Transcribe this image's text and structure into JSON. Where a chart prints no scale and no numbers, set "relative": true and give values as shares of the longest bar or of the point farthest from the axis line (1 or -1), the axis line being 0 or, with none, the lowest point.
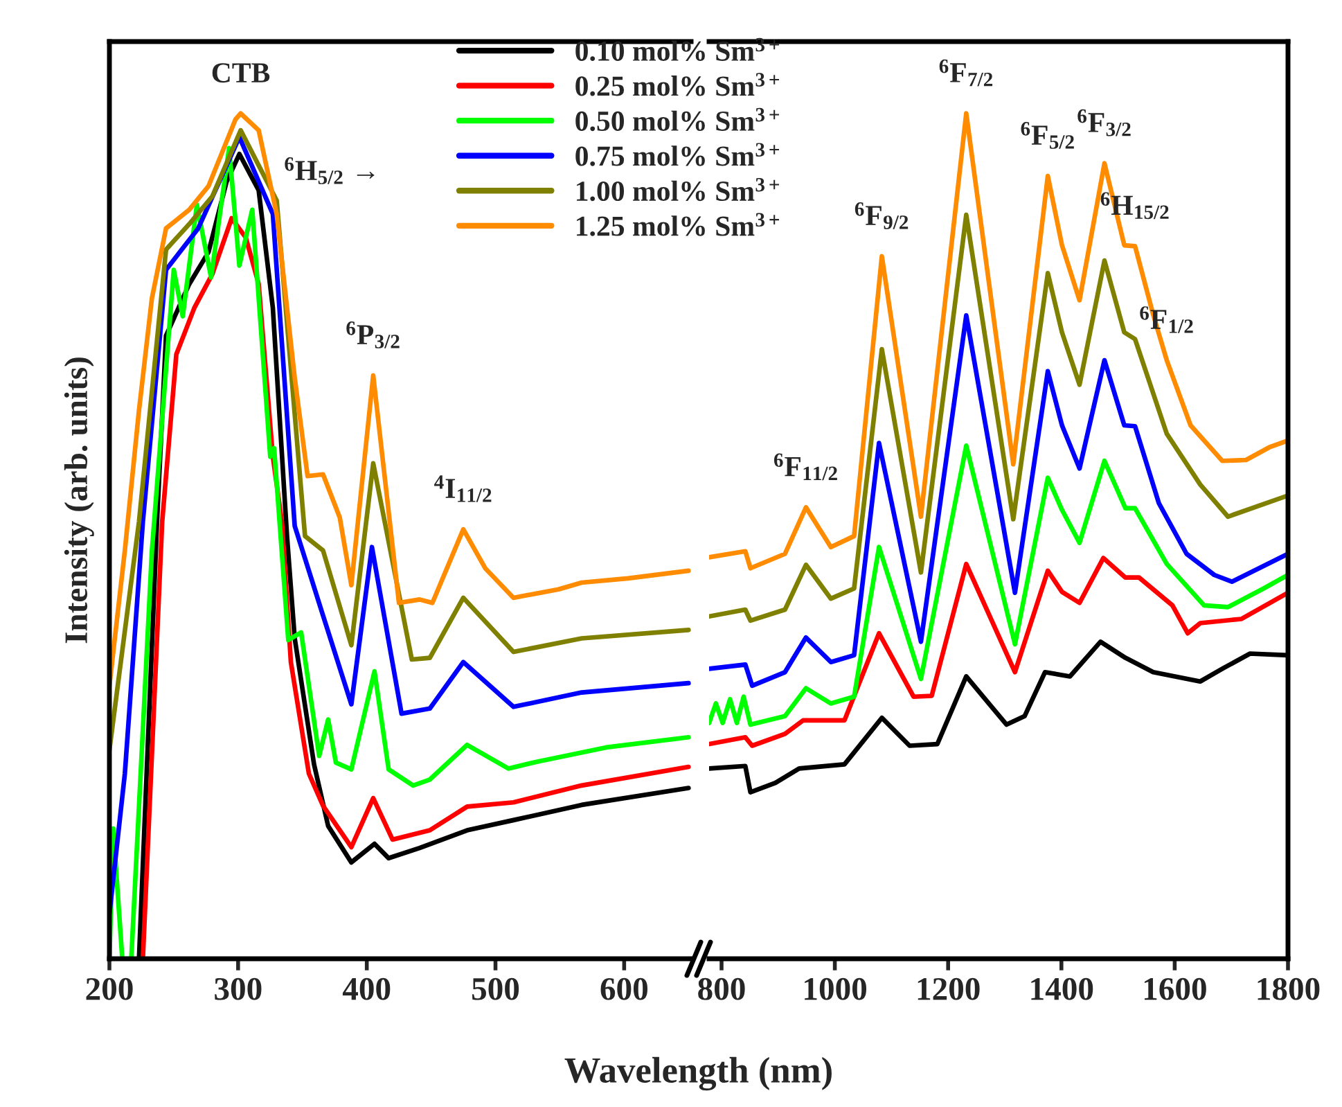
{
  "chart_data": [
    {
      "type": "line",
      "relative": true,
      "ylabel": "Intensity (arb. units)",
      "xlabel": "Wavelength (nm)",
      "xlim": [
        200,
        652
      ],
      "xticks": [
        200,
        300,
        400,
        500,
        600
      ],
      "legend": "top right",
      "grid": false,
      "marker": "none",
      "line_style": "solid",
      "series": [
        {
          "name": "0.10 mol% Sm$^{3+}$",
          "color": "#000000",
          "x": [
            223,
            237,
            244,
            262,
            277,
            291,
            301,
            316,
            327,
            338,
            344,
            359,
            370,
            388,
            406,
            417,
            441,
            478,
            514,
            567,
            650
          ],
          "values": [
            0,
            0.517,
            0.737,
            0.798,
            0.836,
            0.919,
            0.952,
            0.909,
            0.77,
            0.5,
            0.379,
            0.23,
            0.157,
            0.114,
            0.136,
            0.119,
            0.131,
            0.152,
            0.164,
            0.182,
            0.202
          ]
        },
        {
          "name": "0.25 mol% Sm$^{3+}$",
          "color": "#ff0000",
          "x": [
            226,
            241,
            252,
            266,
            280,
            295,
            306,
            316,
            327,
            334,
            341,
            355,
            366,
            388,
            405,
            420,
            449,
            478,
            514,
            567,
            650
          ],
          "values": [
            0,
            0.517,
            0.715,
            0.77,
            0.81,
            0.876,
            0.853,
            0.798,
            0.594,
            0.517,
            0.351,
            0.219,
            0.181,
            0.132,
            0.19,
            0.141,
            0.152,
            0.18,
            0.185,
            0.205,
            0.227
          ]
        },
        {
          "name": "0.50 mol% Sm$^{3+}$",
          "color": "#00ff00",
          "x": [
            200,
            203,
            210,
            217,
            233,
            250,
            257,
            268,
            279,
            293,
            301,
            311,
            325,
            328,
            339,
            349,
            363,
            370,
            376,
            388,
            406,
            417,
            436,
            449,
            478,
            510,
            532,
            586,
            650
          ],
          "values": [
            0,
            0.154,
            0,
            0,
            0.482,
            0.815,
            0.76,
            0.892,
            0.806,
            0.959,
            0.82,
            0.886,
            0.594,
            0.604,
            0.377,
            0.386,
            0.24,
            0.283,
            0.232,
            0.224,
            0.34,
            0.224,
            0.205,
            0.212,
            0.253,
            0.225,
            0.233,
            0.25,
            0.262
          ]
        },
        {
          "name": "0.75 mol% Sm$^{3+}$",
          "color": "#0000ff",
          "x": [
            200,
            212,
            226,
            244,
            269,
            301,
            327,
            344,
            366,
            388,
            404,
            427,
            449,
            475,
            514,
            567,
            650
          ],
          "values": [
            0.053,
            0.219,
            0.517,
            0.815,
            0.864,
            0.972,
            0.881,
            0.512,
            0.406,
            0.301,
            0.487,
            0.29,
            0.296,
            0.351,
            0.298,
            0.315,
            0.326
          ]
        },
        {
          "name": "1.00 mol% Sm$^{3+}$",
          "color": "#808000",
          "x": [
            200,
            223,
            244,
            262,
            280,
            302,
            330,
            352,
            366,
            388,
            405,
            435,
            449,
            475,
            514,
            567,
            650
          ],
          "values": [
            0.247,
            0.517,
            0.839,
            0.869,
            0.902,
            0.98,
            0.897,
            0.5,
            0.483,
            0.371,
            0.586,
            0.354,
            0.356,
            0.427,
            0.363,
            0.379,
            0.389
          ]
        },
        {
          "name": "1.25 mol% Sm$^{3+}$",
          "color": "#ff8c00",
          "x": [
            200,
            212,
            223,
            233,
            244,
            262,
            277,
            298,
            302,
            316,
            330,
            344,
            354,
            366,
            379,
            388,
            405,
            425,
            441,
            451,
            475,
            492,
            514,
            549,
            567,
            603,
            650
          ],
          "values": [
            0.323,
            0.483,
            0.649,
            0.781,
            0.864,
            0.886,
            0.914,
            0.993,
            1.0,
            0.98,
            0.881,
            0.687,
            0.571,
            0.573,
            0.522,
            0.442,
            0.69,
            0.421,
            0.425,
            0.421,
            0.508,
            0.462,
            0.427,
            0.437,
            0.445,
            0.45,
            0.459
          ]
        }
      ],
      "annotations": [
        {
          "text": "CTB",
          "x": 302,
          "y": 1.0
        },
        "$^{6}$H$_{5/2}$ →",
        {
          "text": "$^{6}$P$_{3/2}$",
          "x": 405,
          "y": 0.69
        },
        {
          "text": "$^{4}$I$_{11/2}$",
          "x": 475,
          "y": 0.508
        }
      ]
    },
    {
      "type": "line",
      "relative": true,
      "xlim": [
        778,
        1800
      ],
      "xticks": [
        800,
        1000,
        1200,
        1400,
        1600,
        1800
      ],
      "grid": false,
      "marker": "none",
      "line_style": "solid",
      "series": [
        {
          "color": "#000000",
          "x": [
            778,
            842,
            851,
            895,
            937,
            1017,
            1083,
            1132,
            1181,
            1232,
            1303,
            1335,
            1371,
            1415,
            1469,
            1513,
            1562,
            1645,
            1684,
            1733,
            1800
          ],
          "values": [
            0.225,
            0.228,
            0.197,
            0.208,
            0.225,
            0.23,
            0.285,
            0.252,
            0.254,
            0.334,
            0.277,
            0.287,
            0.339,
            0.334,
            0.375,
            0.356,
            0.339,
            0.328,
            0.343,
            0.361,
            0.359
          ]
        },
        {
          "color": "#ff0000",
          "x": [
            778,
            842,
            854,
            912,
            944,
            1017,
            1078,
            1139,
            1171,
            1232,
            1318,
            1376,
            1401,
            1432,
            1474,
            1513,
            1537,
            1596,
            1623,
            1645,
            1718,
            1800
          ],
          "values": [
            0.254,
            0.262,
            0.252,
            0.266,
            0.282,
            0.282,
            0.385,
            0.31,
            0.311,
            0.467,
            0.339,
            0.459,
            0.434,
            0.421,
            0.474,
            0.451,
            0.451,
            0.418,
            0.385,
            0.397,
            0.402,
            0.433
          ]
        },
        {
          "color": "#00ff00",
          "x": [
            778,
            790,
            802,
            815,
            827,
            839,
            851,
            912,
            949,
            993,
            1034,
            1078,
            1152,
            1232,
            1318,
            1376,
            1401,
            1432,
            1476,
            1513,
            1530,
            1586,
            1652,
            1694,
            1757,
            1800
          ],
          "values": [
            0.279,
            0.302,
            0.279,
            0.307,
            0.279,
            0.31,
            0.277,
            0.287,
            0.32,
            0.302,
            0.31,
            0.487,
            0.331,
            0.607,
            0.372,
            0.569,
            0.531,
            0.492,
            0.589,
            0.533,
            0.533,
            0.467,
            0.418,
            0.416,
            0.438,
            0.454
          ]
        },
        {
          "color": "#0000ff",
          "x": [
            778,
            842,
            854,
            912,
            949,
            993,
            1034,
            1078,
            1152,
            1232,
            1318,
            1376,
            1401,
            1432,
            1476,
            1511,
            1530,
            1572,
            1621,
            1670,
            1701,
            1800
          ],
          "values": [
            0.343,
            0.348,
            0.323,
            0.339,
            0.38,
            0.351,
            0.359,
            0.61,
            0.375,
            0.761,
            0.433,
            0.695,
            0.631,
            0.58,
            0.708,
            0.631,
            0.63,
            0.539,
            0.479,
            0.454,
            0.446,
            0.479
          ]
        },
        {
          "color": "#808000",
          "x": [
            778,
            842,
            851,
            912,
            949,
            993,
            1034,
            1083,
            1152,
            1232,
            1315,
            1376,
            1401,
            1432,
            1476,
            1511,
            1530,
            1586,
            1645,
            1694,
            1800
          ],
          "values": [
            0.405,
            0.413,
            0.4,
            0.413,
            0.466,
            0.426,
            0.438,
            0.721,
            0.457,
            0.88,
            0.52,
            0.811,
            0.741,
            0.679,
            0.826,
            0.741,
            0.733,
            0.621,
            0.561,
            0.523,
            0.548
          ]
        },
        {
          "color": "#ff8c00",
          "x": [
            778,
            842,
            851,
            912,
            949,
            993,
            1034,
            1083,
            1152,
            1232,
            1315,
            1376,
            1401,
            1432,
            1476,
            1511,
            1530,
            1562,
            1586,
            1628,
            1684,
            1726,
            1767,
            1800
          ],
          "values": [
            0.475,
            0.482,
            0.462,
            0.479,
            0.534,
            0.487,
            0.5,
            0.831,
            0.523,
            1.0,
            0.585,
            0.926,
            0.844,
            0.779,
            0.941,
            0.844,
            0.843,
            0.762,
            0.708,
            0.631,
            0.589,
            0.59,
            0.605,
            0.613
          ]
        }
      ],
      "annotations": [
        {
          "text": "$^{6}$F$_{11/2}$",
          "x": 949,
          "y": 0.534
        },
        {
          "text": "$^{6}$F$_{9/2}$",
          "x": 1083,
          "y": 0.831
        },
        {
          "text": "$^{6}$F$_{7/2}$",
          "x": 1232,
          "y": 1.0
        },
        {
          "text": "$^{6}$F$_{5/2}$",
          "x": 1376,
          "y": 0.926
        },
        {
          "text": "$^{6}$F$_{3/2}$",
          "x": 1476,
          "y": 0.941
        },
        {
          "text": "$^{6}$H$_{15/2}$",
          "x": 1530,
          "y": 0.843
        },
        {
          "text": "$^{6}$F$_{1/2}$",
          "x": 1586,
          "y": 0.708
        }
      ]
    }
  ]
}
